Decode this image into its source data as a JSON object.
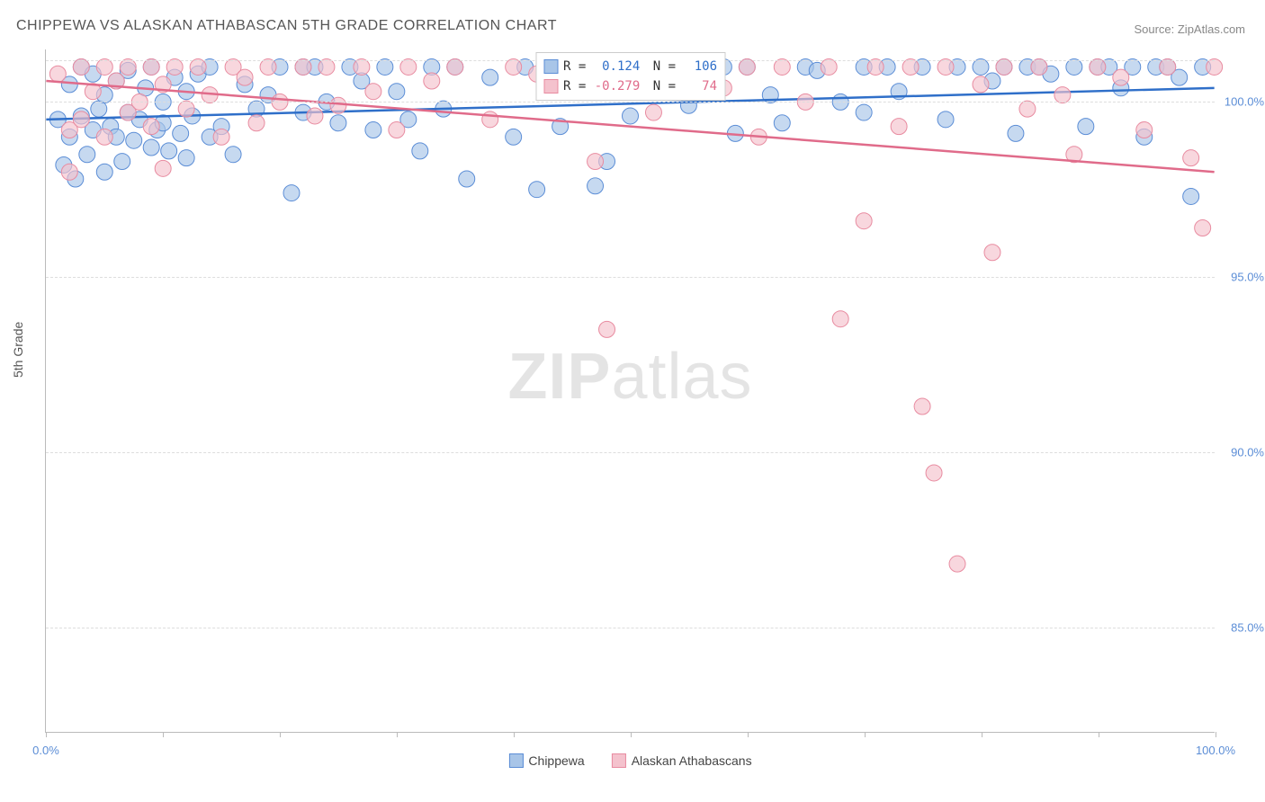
{
  "title": "CHIPPEWA VS ALASKAN ATHABASCAN 5TH GRADE CORRELATION CHART",
  "source": "Source: ZipAtlas.com",
  "ylabel": "5th Grade",
  "watermark_bold": "ZIP",
  "watermark_light": "atlas",
  "chart": {
    "type": "scatter",
    "xlim": [
      0,
      100
    ],
    "ylim": [
      82,
      101.5
    ],
    "x_ticks": [
      0,
      10,
      20,
      30,
      40,
      50,
      60,
      70,
      80,
      90,
      100
    ],
    "x_tick_labels": {
      "0": "0.0%",
      "100": "100.0%"
    },
    "y_gridlines": [
      85,
      90,
      95,
      100,
      101.2
    ],
    "y_tick_labels": {
      "85": "85.0%",
      "90": "90.0%",
      "95": "95.0%",
      "100": "100.0%"
    },
    "background_color": "#ffffff",
    "grid_color": "#dddddd",
    "axis_color": "#bbbbbb",
    "label_color": "#5b8dd6",
    "series": [
      {
        "name": "Chippewa",
        "legend_label": "Chippewa",
        "marker_fill": "#a8c5e8",
        "marker_stroke": "#5b8dd6",
        "marker_opacity": 0.65,
        "marker_radius": 9,
        "line_color": "#2f6fc9",
        "line_width": 2.5,
        "R": "0.124",
        "N": "106",
        "trend": {
          "x1": 0,
          "y1": 99.5,
          "x2": 100,
          "y2": 100.4
        },
        "points": [
          [
            1,
            99.5
          ],
          [
            1.5,
            98.2
          ],
          [
            2,
            100.5
          ],
          [
            2,
            99.0
          ],
          [
            2.5,
            97.8
          ],
          [
            3,
            99.6
          ],
          [
            3,
            101.0
          ],
          [
            3.5,
            98.5
          ],
          [
            4,
            99.2
          ],
          [
            4,
            100.8
          ],
          [
            4.5,
            99.8
          ],
          [
            5,
            98.0
          ],
          [
            5,
            100.2
          ],
          [
            5.5,
            99.3
          ],
          [
            6,
            100.6
          ],
          [
            6,
            99.0
          ],
          [
            6.5,
            98.3
          ],
          [
            7,
            99.7
          ],
          [
            7,
            100.9
          ],
          [
            7.5,
            98.9
          ],
          [
            8,
            99.5
          ],
          [
            8.5,
            100.4
          ],
          [
            9,
            98.7
          ],
          [
            9,
            101.0
          ],
          [
            9.5,
            99.2
          ],
          [
            10,
            100.0
          ],
          [
            10,
            99.4
          ],
          [
            10.5,
            98.6
          ],
          [
            11,
            100.7
          ],
          [
            11.5,
            99.1
          ],
          [
            12,
            98.4
          ],
          [
            12,
            100.3
          ],
          [
            12.5,
            99.6
          ],
          [
            13,
            100.8
          ],
          [
            14,
            99.0
          ],
          [
            14,
            101.0
          ],
          [
            15,
            99.3
          ],
          [
            16,
            98.5
          ],
          [
            17,
            100.5
          ],
          [
            18,
            99.8
          ],
          [
            19,
            100.2
          ],
          [
            20,
            101.0
          ],
          [
            21,
            97.4
          ],
          [
            22,
            99.7
          ],
          [
            22,
            101.0
          ],
          [
            23,
            101.0
          ],
          [
            24,
            100.0
          ],
          [
            25,
            99.4
          ],
          [
            26,
            101.0
          ],
          [
            27,
            100.6
          ],
          [
            28,
            99.2
          ],
          [
            29,
            101.0
          ],
          [
            30,
            100.3
          ],
          [
            31,
            99.5
          ],
          [
            32,
            98.6
          ],
          [
            33,
            101.0
          ],
          [
            34,
            99.8
          ],
          [
            35,
            101.0
          ],
          [
            36,
            97.8
          ],
          [
            38,
            100.7
          ],
          [
            40,
            99.0
          ],
          [
            41,
            101.0
          ],
          [
            42,
            97.5
          ],
          [
            44,
            99.3
          ],
          [
            45,
            100.4
          ],
          [
            46,
            101.0
          ],
          [
            47,
            97.6
          ],
          [
            48,
            98.3
          ],
          [
            50,
            99.6
          ],
          [
            52,
            101.0
          ],
          [
            55,
            99.9
          ],
          [
            56,
            100.8
          ],
          [
            58,
            101.0
          ],
          [
            59,
            99.1
          ],
          [
            60,
            101.0
          ],
          [
            62,
            100.2
          ],
          [
            63,
            99.4
          ],
          [
            65,
            101.0
          ],
          [
            66,
            100.9
          ],
          [
            68,
            100.0
          ],
          [
            70,
            101.0
          ],
          [
            70,
            99.7
          ],
          [
            72,
            101.0
          ],
          [
            73,
            100.3
          ],
          [
            75,
            101.0
          ],
          [
            77,
            99.5
          ],
          [
            78,
            101.0
          ],
          [
            80,
            101.0
          ],
          [
            81,
            100.6
          ],
          [
            82,
            101.0
          ],
          [
            83,
            99.1
          ],
          [
            84,
            101.0
          ],
          [
            85,
            101.0
          ],
          [
            86,
            100.8
          ],
          [
            88,
            101.0
          ],
          [
            89,
            99.3
          ],
          [
            90,
            101.0
          ],
          [
            91,
            101.0
          ],
          [
            92,
            100.4
          ],
          [
            93,
            101.0
          ],
          [
            94,
            99.0
          ],
          [
            95,
            101.0
          ],
          [
            96,
            101.0
          ],
          [
            97,
            100.7
          ],
          [
            98,
            97.3
          ],
          [
            99,
            101.0
          ]
        ]
      },
      {
        "name": "Alaskan Athabascans",
        "legend_label": "Alaskan Athabascans",
        "marker_fill": "#f4c2cd",
        "marker_stroke": "#e88ba0",
        "marker_opacity": 0.65,
        "marker_radius": 9,
        "line_color": "#e06b8a",
        "line_width": 2.5,
        "R": "-0.279",
        "N": "74",
        "trend": {
          "x1": 0,
          "y1": 100.6,
          "x2": 100,
          "y2": 98.0
        },
        "points": [
          [
            1,
            100.8
          ],
          [
            2,
            99.2
          ],
          [
            2,
            98.0
          ],
          [
            3,
            101.0
          ],
          [
            3,
            99.5
          ],
          [
            4,
            100.3
          ],
          [
            5,
            99.0
          ],
          [
            5,
            101.0
          ],
          [
            6,
            100.6
          ],
          [
            7,
            99.7
          ],
          [
            7,
            101.0
          ],
          [
            8,
            100.0
          ],
          [
            9,
            99.3
          ],
          [
            9,
            101.0
          ],
          [
            10,
            100.5
          ],
          [
            10,
            98.1
          ],
          [
            11,
            101.0
          ],
          [
            12,
            99.8
          ],
          [
            13,
            101.0
          ],
          [
            14,
            100.2
          ],
          [
            15,
            99.0
          ],
          [
            16,
            101.0
          ],
          [
            17,
            100.7
          ],
          [
            18,
            99.4
          ],
          [
            19,
            101.0
          ],
          [
            20,
            100.0
          ],
          [
            22,
            101.0
          ],
          [
            23,
            99.6
          ],
          [
            24,
            101.0
          ],
          [
            25,
            99.9
          ],
          [
            27,
            101.0
          ],
          [
            28,
            100.3
          ],
          [
            30,
            99.2
          ],
          [
            31,
            101.0
          ],
          [
            33,
            100.6
          ],
          [
            35,
            101.0
          ],
          [
            38,
            99.5
          ],
          [
            40,
            101.0
          ],
          [
            42,
            100.8
          ],
          [
            45,
            101.0
          ],
          [
            47,
            98.3
          ],
          [
            48,
            93.5
          ],
          [
            50,
            101.0
          ],
          [
            52,
            99.7
          ],
          [
            55,
            101.0
          ],
          [
            58,
            100.4
          ],
          [
            60,
            101.0
          ],
          [
            61,
            99.0
          ],
          [
            63,
            101.0
          ],
          [
            65,
            100.0
          ],
          [
            67,
            101.0
          ],
          [
            68,
            93.8
          ],
          [
            70,
            96.6
          ],
          [
            71,
            101.0
          ],
          [
            73,
            99.3
          ],
          [
            74,
            101.0
          ],
          [
            75,
            91.3
          ],
          [
            76,
            89.4
          ],
          [
            77,
            101.0
          ],
          [
            78,
            86.8
          ],
          [
            80,
            100.5
          ],
          [
            81,
            95.7
          ],
          [
            82,
            101.0
          ],
          [
            84,
            99.8
          ],
          [
            85,
            101.0
          ],
          [
            87,
            100.2
          ],
          [
            88,
            98.5
          ],
          [
            90,
            101.0
          ],
          [
            92,
            100.7
          ],
          [
            94,
            99.2
          ],
          [
            96,
            101.0
          ],
          [
            98,
            98.4
          ],
          [
            99,
            96.4
          ],
          [
            100,
            101.0
          ]
        ]
      }
    ]
  },
  "legend_stats_labels": {
    "R": "R =",
    "N": "N ="
  }
}
